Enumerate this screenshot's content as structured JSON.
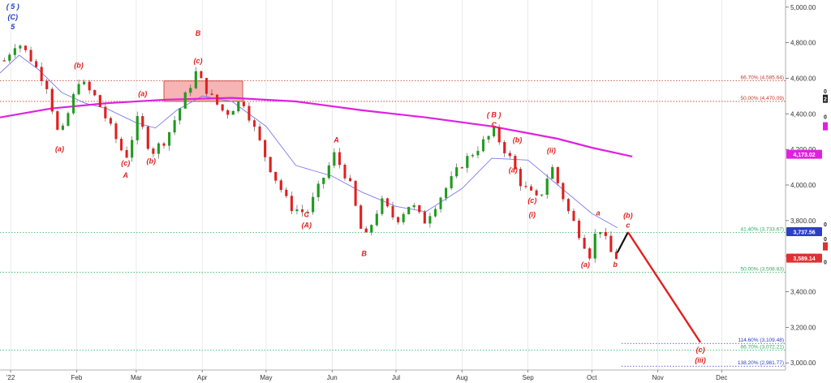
{
  "chart_data": {
    "type": "candlestick",
    "title": "",
    "x_range": [
      "2021-12-27",
      "2022-12-31"
    ],
    "y_range": [
      2960,
      5040
    ],
    "x_ticks": [
      {
        "date": "2022-01-01",
        "label": "'22"
      },
      {
        "date": "2022-02-01",
        "label": "Feb"
      },
      {
        "date": "2022-03-01",
        "label": "Mar"
      },
      {
        "date": "2022-04-01",
        "label": "Apr"
      },
      {
        "date": "2022-05-01",
        "label": "May"
      },
      {
        "date": "2022-06-01",
        "label": "Jun"
      },
      {
        "date": "2022-07-01",
        "label": "Jul"
      },
      {
        "date": "2022-08-01",
        "label": "Aug"
      },
      {
        "date": "2022-09-01",
        "label": "Sep"
      },
      {
        "date": "2022-10-01",
        "label": "Oct"
      },
      {
        "date": "2022-11-01",
        "label": "Nov"
      },
      {
        "date": "2022-12-01",
        "label": "Dec"
      }
    ],
    "y_ticks": [
      {
        "value": 3000,
        "label": "3,000.00"
      },
      {
        "value": 3200,
        "label": "3,200.00"
      },
      {
        "value": 3400,
        "label": "3,400.00"
      },
      {
        "value": 3600,
        "label": "3,600.00"
      },
      {
        "value": 3800,
        "label": "3,800.00"
      },
      {
        "value": 4000,
        "label": "4,000.00"
      },
      {
        "value": 4200,
        "label": "4,200.00"
      },
      {
        "value": 4400,
        "label": "4,400.00"
      },
      {
        "value": 4600,
        "label": "4,600.00"
      },
      {
        "value": 4800,
        "label": "4,800.00"
      },
      {
        "value": 5000,
        "label": "5,000.00"
      }
    ],
    "price_path": [
      [
        "2021-12-29",
        4700
      ],
      [
        "2022-01-04",
        4810
      ],
      [
        "2022-01-10",
        4720
      ],
      [
        "2022-01-18",
        4560
      ],
      [
        "2022-01-24",
        4250
      ],
      [
        "2022-02-02",
        4590
      ],
      [
        "2022-02-10",
        4490
      ],
      [
        "2022-02-24",
        4150
      ],
      [
        "2022-03-02",
        4380
      ],
      [
        "2022-03-08",
        4180
      ],
      [
        "2022-03-15",
        4260
      ],
      [
        "2022-03-29",
        4630
      ],
      [
        "2022-04-06",
        4480
      ],
      [
        "2022-04-12",
        4400
      ],
      [
        "2022-04-20",
        4480
      ],
      [
        "2022-05-02",
        4120
      ],
      [
        "2022-05-12",
        3880
      ],
      [
        "2022-05-20",
        3840
      ],
      [
        "2022-06-02",
        4170
      ],
      [
        "2022-06-09",
        4020
      ],
      [
        "2022-06-16",
        3680
      ],
      [
        "2022-06-24",
        3910
      ],
      [
        "2022-07-01",
        3800
      ],
      [
        "2022-07-08",
        3900
      ],
      [
        "2022-07-14",
        3790
      ],
      [
        "2022-08-01",
        4120
      ],
      [
        "2022-08-16",
        4300
      ],
      [
        "2022-08-24",
        4140
      ],
      [
        "2022-08-29",
        4000
      ],
      [
        "2022-09-06",
        3910
      ],
      [
        "2022-09-12",
        4110
      ],
      [
        "2022-09-20",
        3850
      ],
      [
        "2022-09-30",
        3610
      ],
      [
        "2022-10-04",
        3780
      ],
      [
        "2022-10-10",
        3620
      ],
      [
        "2022-10-13",
        3590
      ]
    ],
    "series": [
      {
        "name": "",
        "kind": "moving-average",
        "color": "#7b7bee",
        "points": [
          [
            "2021-12-27",
            4630
          ],
          [
            "2022-01-05",
            4730
          ],
          [
            "2022-01-14",
            4650
          ],
          [
            "2022-01-25",
            4520
          ],
          [
            "2022-02-05",
            4460
          ],
          [
            "2022-02-15",
            4430
          ],
          [
            "2022-03-01",
            4350
          ],
          [
            "2022-03-10",
            4320
          ],
          [
            "2022-03-20",
            4420
          ],
          [
            "2022-04-01",
            4500
          ],
          [
            "2022-04-15",
            4470
          ],
          [
            "2022-05-01",
            4330
          ],
          [
            "2022-05-15",
            4110
          ],
          [
            "2022-06-01",
            4050
          ],
          [
            "2022-06-15",
            3960
          ],
          [
            "2022-07-01",
            3880
          ],
          [
            "2022-07-15",
            3850
          ],
          [
            "2022-08-01",
            3980
          ],
          [
            "2022-08-15",
            4150
          ],
          [
            "2022-09-01",
            4140
          ],
          [
            "2022-09-15",
            4000
          ],
          [
            "2022-10-01",
            3840
          ],
          [
            "2022-10-13",
            3760
          ]
        ]
      },
      {
        "name": "",
        "kind": "moving-average",
        "color": "#e020e0",
        "points": [
          [
            "2021-12-27",
            4380
          ],
          [
            "2022-01-20",
            4430
          ],
          [
            "2022-02-15",
            4460
          ],
          [
            "2022-03-15",
            4480
          ],
          [
            "2022-04-15",
            4490
          ],
          [
            "2022-05-15",
            4470
          ],
          [
            "2022-06-15",
            4420
          ],
          [
            "2022-07-15",
            4380
          ],
          [
            "2022-08-15",
            4330
          ],
          [
            "2022-09-15",
            4260
          ],
          [
            "2022-10-01",
            4210
          ],
          [
            "2022-10-20",
            4160
          ]
        ]
      }
    ],
    "projection": {
      "black_leg": [
        [
          "2022-10-13",
          3620
        ],
        [
          "2022-10-18",
          3735
        ]
      ],
      "red_leg": [
        [
          "2022-10-18",
          3735
        ],
        [
          "2022-11-21",
          3115
        ]
      ]
    },
    "levels": [
      {
        "value": 4585.64,
        "label": "66.70% (4,585.64)",
        "color": "#c0392b",
        "style": "dotted",
        "x_start": "2021-12-27"
      },
      {
        "value": 4470.09,
        "label": "50.00% (4,470.09)",
        "color": "#c0392b",
        "style": "dotted",
        "x_start": "2021-12-27"
      },
      {
        "value": 3733.67,
        "label": "41.40% (3,733.67)",
        "color": "#27ae60",
        "style": "dotted",
        "x_start": "2021-12-27"
      },
      {
        "value": 3508.83,
        "label": "50.00% (3,508.83)",
        "color": "#27ae60",
        "style": "dotted",
        "x_start": "2021-12-27"
      },
      {
        "value": 3109.48,
        "label": "114.60% (3,109.48)",
        "color": "#2c3ec7",
        "style": "dotted",
        "x_start": "2022-10-15"
      },
      {
        "value": 3072.21,
        "label": "66.70% (3,072.21)",
        "color": "#27ae60",
        "style": "dotted",
        "x_start": "2021-12-27"
      },
      {
        "value": 2981.77,
        "label": "138.20% (2,981.77)",
        "color": "#2c3ec7",
        "style": "dotted",
        "x_start": "2022-10-15"
      }
    ],
    "zone": {
      "x0": "2022-03-14",
      "x1": "2022-04-20",
      "y0": 4470,
      "y1": 4585,
      "fill": "#f4a7a7",
      "stroke": "#c0392b"
    },
    "price_tags": [
      {
        "value": 4173.02,
        "label": "4,173.02",
        "color": "#e020e0"
      },
      {
        "value": 3737.56,
        "label": "3,737.56",
        "color": "#2c3ec7"
      },
      {
        "value": 3589.14,
        "label": "3,589.14",
        "color": "#e03030"
      }
    ],
    "edge_markers": [
      {
        "value": 4530,
        "label": "0"
      },
      {
        "value": 4385,
        "label": "0"
      },
      {
        "value": 3780,
        "label": "0"
      },
      {
        "value": 3700,
        "label": "0"
      },
      {
        "value": 3570,
        "label": "0"
      }
    ],
    "edge_tags": [
      {
        "value": 4485,
        "label": "2",
        "color": "#222222"
      },
      {
        "value": 4330,
        "label": "",
        "color": "#e020e0"
      },
      {
        "value": 3655,
        "label": "",
        "color": "#e03030"
      }
    ],
    "wave_labels": [
      {
        "date": "2022-01-02",
        "value": 4990,
        "label": "( 5 )",
        "color": "#1f3fc4"
      },
      {
        "date": "2022-01-02",
        "value": 4930,
        "label": "(C)",
        "color": "#1f3fc4"
      },
      {
        "date": "2022-01-02",
        "value": 4875,
        "label": "5",
        "color": "#1f3fc4"
      },
      {
        "date": "2022-01-24",
        "value": 4190,
        "label": "(a)",
        "color": "#e02020"
      },
      {
        "date": "2022-02-02",
        "value": 4660,
        "label": "(b)",
        "color": "#e02020"
      },
      {
        "date": "2022-03-04",
        "value": 4500,
        "label": "(a)",
        "color": "#e02020"
      },
      {
        "date": "2022-02-24",
        "value": 4110,
        "label": "(c)",
        "color": "#e02020"
      },
      {
        "date": "2022-02-24",
        "value": 4040,
        "label": "A",
        "color": "#e02020"
      },
      {
        "date": "2022-03-08",
        "value": 4120,
        "label": "(b)",
        "color": "#e02020"
      },
      {
        "date": "2022-03-30",
        "value": 4840,
        "label": "B",
        "color": "#e02020"
      },
      {
        "date": "2022-03-30",
        "value": 4685,
        "label": "(c)",
        "color": "#e02020"
      },
      {
        "date": "2022-06-03",
        "value": 4240,
        "label": "A",
        "color": "#e02020"
      },
      {
        "date": "2022-05-20",
        "value": 3820,
        "label": "C",
        "color": "#e02020"
      },
      {
        "date": "2022-05-20",
        "value": 3760,
        "label": "(A)",
        "color": "#e02020"
      },
      {
        "date": "2022-06-16",
        "value": 3600,
        "label": "B",
        "color": "#e02020"
      },
      {
        "date": "2022-08-16",
        "value": 4380,
        "label": "( B )",
        "color": "#e02020"
      },
      {
        "date": "2022-08-16",
        "value": 4325,
        "label": "C",
        "color": "#e02020"
      },
      {
        "date": "2022-08-27",
        "value": 4240,
        "label": "(b)",
        "color": "#e02020"
      },
      {
        "date": "2022-08-25",
        "value": 4070,
        "label": "(a)",
        "color": "#e02020"
      },
      {
        "date": "2022-09-03",
        "value": 3900,
        "label": "(c)",
        "color": "#e02020"
      },
      {
        "date": "2022-09-03",
        "value": 3820,
        "label": "(i)",
        "color": "#e02020"
      },
      {
        "date": "2022-09-12",
        "value": 4180,
        "label": "(ii)",
        "color": "#e02020"
      },
      {
        "date": "2022-10-04",
        "value": 3830,
        "label": "a",
        "color": "#e02020"
      },
      {
        "date": "2022-09-28",
        "value": 3540,
        "label": "(a)",
        "color": "#e02020"
      },
      {
        "date": "2022-10-12",
        "value": 3540,
        "label": "b",
        "color": "#e02020"
      },
      {
        "date": "2022-10-18",
        "value": 3815,
        "label": "(b)",
        "color": "#e02020"
      },
      {
        "date": "2022-10-18",
        "value": 3760,
        "label": "c",
        "color": "#e02020"
      },
      {
        "date": "2022-11-21",
        "value": 3060,
        "label": "(c)",
        "color": "#e02020"
      },
      {
        "date": "2022-11-21",
        "value": 3000,
        "label": "(iii)",
        "color": "#e02020"
      }
    ],
    "colors": {
      "up": "#1f9a1f",
      "down": "#e02020",
      "grid": "#dddddd",
      "axis": "#9a9a9a"
    }
  }
}
